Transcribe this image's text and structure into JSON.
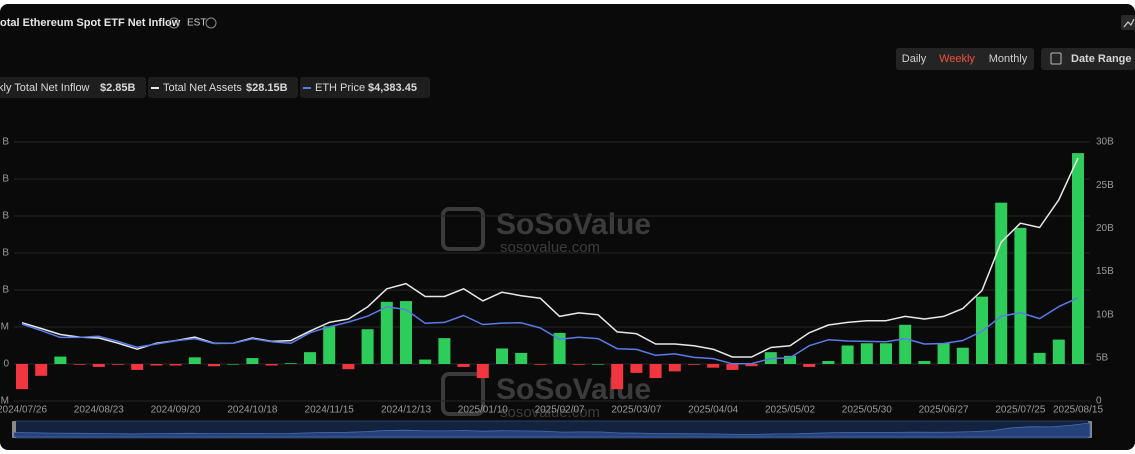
{
  "header": {
    "title": "otal Ethereum Spot ETF Net Inflow",
    "timezone": "EST"
  },
  "controls": {
    "periods": [
      "Daily",
      "Weekly",
      "Monthly"
    ],
    "active_period": 1,
    "date_range": "Date Range"
  },
  "watermark": {
    "brand": "SoSoValue",
    "url": "sosovalue.com"
  },
  "chart_data": {
    "type": "combo",
    "categories": [
      "2024/07/26",
      null,
      null,
      null,
      "2024/08/23",
      null,
      null,
      null,
      "2024/09/20",
      null,
      null,
      null,
      "2024/10/18",
      null,
      null,
      null,
      "2024/11/15",
      null,
      null,
      null,
      "2024/12/13",
      null,
      null,
      null,
      "2025/01/10",
      null,
      null,
      null,
      "2025/02/07",
      null,
      null,
      null,
      "2025/03/07",
      null,
      null,
      null,
      "2025/04/04",
      null,
      null,
      null,
      "2025/05/02",
      null,
      null,
      null,
      "2025/05/30",
      null,
      null,
      null,
      "2025/06/27",
      null,
      null,
      null,
      "2025/07/25",
      null,
      null,
      "2025/08/15"
    ],
    "series": [
      {
        "name": "kly Total Net Inflow",
        "type": "bar",
        "color": "#2ecc5b",
        "negative_color": "#f2363f",
        "latest": "$2.85B",
        "values": [
          -0.34,
          -0.16,
          0.1,
          -0.01,
          -0.04,
          -0.01,
          -0.08,
          -0.02,
          -0.02,
          0.09,
          -0.03,
          0,
          0.08,
          -0.02,
          0.01,
          0.16,
          0.51,
          -0.07,
          0.47,
          0.84,
          0.85,
          0.06,
          0.35,
          -0.04,
          -0.19,
          0.21,
          0.15,
          -0.01,
          0.42,
          -0.01,
          0,
          -0.34,
          -0.12,
          -0.19,
          -0.1,
          -0.01,
          -0.05,
          -0.08,
          -0.03,
          0.16,
          0.11,
          -0.04,
          0.04,
          0.25,
          0.28,
          0.28,
          0.53,
          0.04,
          0.28,
          0.22,
          0.91,
          2.18,
          1.84,
          0.15,
          0.33,
          2.85
        ]
      },
      {
        "name": "Total Net Assets",
        "type": "line",
        "axis": "y2",
        "color": "#e8e8e8",
        "latest": "$28.15B",
        "values": [
          9.07,
          8.4,
          7.7,
          7.4,
          7.3,
          6.7,
          6.0,
          6.7,
          7.0,
          7.4,
          6.7,
          6.7,
          7.3,
          6.9,
          7.0,
          8.1,
          9.1,
          9.5,
          10.9,
          13.0,
          13.6,
          12.1,
          12.1,
          13.0,
          11.6,
          12.6,
          12.2,
          11.9,
          9.8,
          10.2,
          10.0,
          8.0,
          7.8,
          6.6,
          6.6,
          6.4,
          6.0,
          5.1,
          5.1,
          6.2,
          6.4,
          7.9,
          8.8,
          9.1,
          9.3,
          9.3,
          9.8,
          9.5,
          9.8,
          10.7,
          12.8,
          18.4,
          20.6,
          20.1,
          23.3,
          28.15
        ]
      },
      {
        "name": "ETH Price",
        "type": "line",
        "axis": "y3",
        "color": "#5b7be6",
        "latest": "$4,383.45",
        "values": [
          3270,
          2990,
          2700,
          2700,
          2750,
          2530,
          2280,
          2420,
          2560,
          2650,
          2440,
          2450,
          2640,
          2520,
          2450,
          2900,
          3150,
          3350,
          3600,
          4000,
          3880,
          3300,
          3340,
          3630,
          3250,
          3310,
          3320,
          3100,
          2620,
          2710,
          2650,
          2220,
          2190,
          1940,
          2000,
          1850,
          1800,
          1580,
          1590,
          1800,
          1840,
          2350,
          2600,
          2550,
          2530,
          2520,
          2650,
          2420,
          2440,
          2570,
          2960,
          3600,
          3750,
          3500,
          4010,
          4383.45
        ]
      }
    ],
    "ylim": [
      -0.5,
      3
    ],
    "yticks": [
      {
        "value": 3,
        "label": "B"
      },
      {
        "value": 2.5,
        "label": "B"
      },
      {
        "value": 2,
        "label": "B"
      },
      {
        "value": 1.5,
        "label": "B"
      },
      {
        "value": 1,
        "label": "B"
      },
      {
        "value": 0.5,
        "label": "M"
      },
      0,
      {
        "value": -0.5,
        "label": "M"
      }
    ],
    "y2lim": [
      0,
      30
    ],
    "y2ticks": [
      {
        "value": 30,
        "label": "30B"
      },
      {
        "value": 25,
        "label": "25B"
      },
      {
        "value": 20,
        "label": "20B"
      },
      {
        "value": 15,
        "label": "15B"
      },
      {
        "value": 10,
        "label": "10B"
      },
      {
        "value": 5,
        "label": "5B"
      },
      0
    ],
    "y3lim": [
      0,
      11000
    ],
    "grid": true
  }
}
